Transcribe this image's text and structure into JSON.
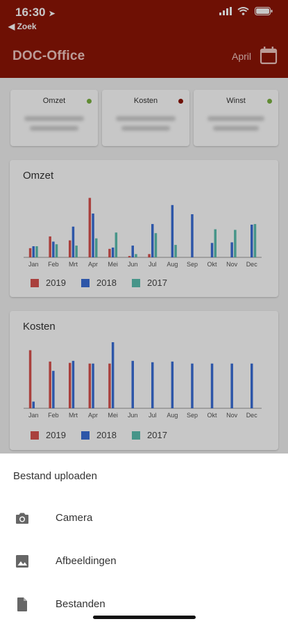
{
  "status_bar": {
    "time": "16:30",
    "back_label": "◀ Zoek"
  },
  "header": {
    "title": "DOC-Office",
    "month": "April"
  },
  "kpis": [
    {
      "label": "Omzet",
      "dot_color": "#7cb342"
    },
    {
      "label": "Kosten",
      "dot_color": "#8e1506"
    },
    {
      "label": "Winst",
      "dot_color": "#7cb342"
    }
  ],
  "colors": {
    "2019": "#d9534f",
    "2018": "#3a6fd8",
    "2017": "#5bbfb0",
    "header": "#8e1506"
  },
  "chart_data": [
    {
      "type": "bar",
      "title": "Omzet",
      "categories": [
        "Jan",
        "Feb",
        "Mrt",
        "Apr",
        "Mei",
        "Jun",
        "Jul",
        "Aug",
        "Sep",
        "Okt",
        "Nov",
        "Dec"
      ],
      "series": [
        {
          "name": "2019",
          "values": [
            14,
            32,
            26,
            91,
            13,
            2,
            5,
            0,
            0,
            0,
            0,
            0
          ]
        },
        {
          "name": "2018",
          "values": [
            17,
            24,
            47,
            67,
            15,
            18,
            51,
            80,
            66,
            22,
            23,
            50
          ]
        },
        {
          "name": "2017",
          "values": [
            17,
            20,
            18,
            29,
            38,
            5,
            37,
            19,
            0,
            43,
            42,
            51
          ]
        }
      ],
      "ylim": [
        0,
        100
      ]
    },
    {
      "type": "bar",
      "title": "Kosten",
      "categories": [
        "Jan",
        "Feb",
        "Mrt",
        "Apr",
        "Mei",
        "Jun",
        "Jul",
        "Aug",
        "Sep",
        "Okt",
        "Nov",
        "Dec"
      ],
      "series": [
        {
          "name": "2019",
          "values": [
            87,
            70,
            68,
            67,
            67,
            0,
            0,
            0,
            0,
            0,
            0,
            0
          ]
        },
        {
          "name": "2018",
          "values": [
            10,
            56,
            71,
            67,
            99,
            71,
            69,
            70,
            67,
            67,
            67,
            67
          ]
        },
        {
          "name": "2017",
          "values": [
            0,
            0,
            0,
            0,
            0,
            0,
            0,
            0,
            0,
            0,
            0,
            0
          ]
        }
      ],
      "ylim": [
        0,
        100
      ]
    }
  ],
  "sheet": {
    "title": "Bestand uploaden",
    "items": [
      {
        "label": "Camera",
        "icon": "camera-icon"
      },
      {
        "label": "Afbeeldingen",
        "icon": "image-icon"
      },
      {
        "label": "Bestanden",
        "icon": "file-icon"
      }
    ]
  }
}
